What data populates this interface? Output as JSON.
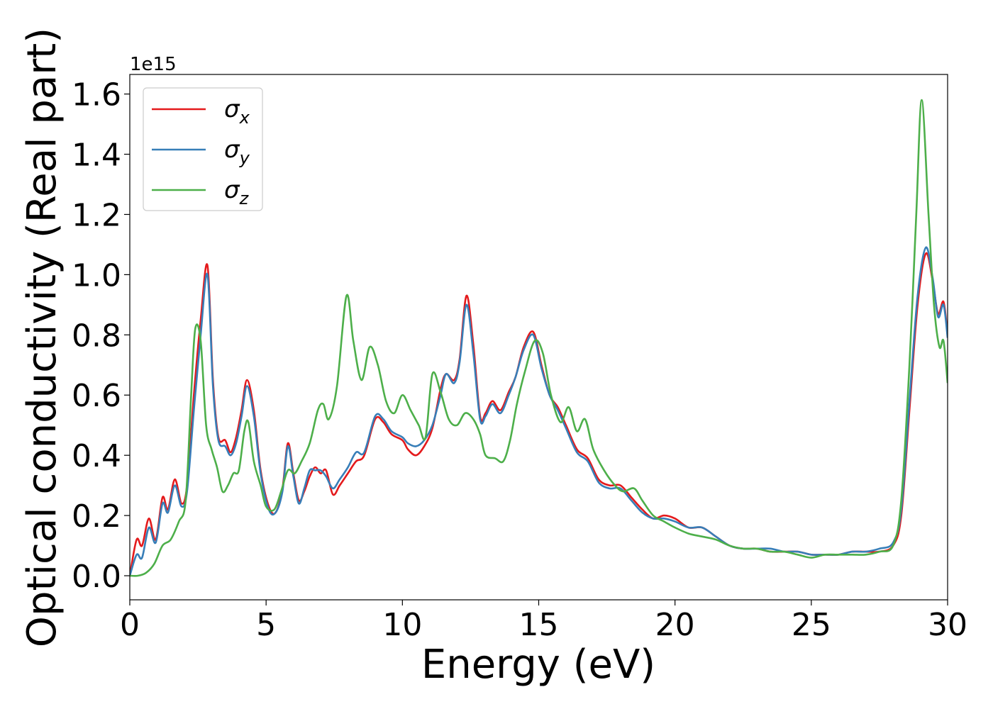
{
  "chart_data": {
    "type": "line",
    "xlabel": "Energy (eV)",
    "ylabel": "Optical conductivity (Real part)",
    "offset_text": "1e15",
    "y_scale": 1000000000000000.0,
    "xlim": [
      0,
      30
    ],
    "ylim": [
      -0.08,
      1.665
    ],
    "x_ticks": [
      0,
      5,
      10,
      15,
      20,
      25,
      30
    ],
    "x_tick_labels": [
      "0",
      "5",
      "10",
      "15",
      "20",
      "25",
      "30"
    ],
    "y_ticks": [
      0.0,
      0.2,
      0.4,
      0.6,
      0.8,
      1.0,
      1.2,
      1.4,
      1.6
    ],
    "y_tick_labels": [
      "0.0",
      "0.2",
      "0.4",
      "0.6",
      "0.8",
      "1.0",
      "1.2",
      "1.4",
      "1.6"
    ],
    "grid": false,
    "legend_position": "top-left",
    "series": [
      {
        "name": "σx",
        "symbol": "σ",
        "subscript": "x",
        "color": "#e41a1c",
        "points": [
          [
            0,
            0.0
          ],
          [
            0.25,
            0.12
          ],
          [
            0.45,
            0.1
          ],
          [
            0.7,
            0.19
          ],
          [
            0.95,
            0.12
          ],
          [
            1.2,
            0.26
          ],
          [
            1.4,
            0.22
          ],
          [
            1.65,
            0.32
          ],
          [
            1.9,
            0.24
          ],
          [
            2.1,
            0.3
          ],
          [
            2.35,
            0.6
          ],
          [
            2.6,
            0.85
          ],
          [
            2.85,
            1.03
          ],
          [
            3.05,
            0.65
          ],
          [
            3.25,
            0.46
          ],
          [
            3.5,
            0.45
          ],
          [
            3.7,
            0.41
          ],
          [
            3.9,
            0.46
          ],
          [
            4.1,
            0.55
          ],
          [
            4.3,
            0.65
          ],
          [
            4.55,
            0.55
          ],
          [
            4.8,
            0.35
          ],
          [
            5.1,
            0.23
          ],
          [
            5.35,
            0.21
          ],
          [
            5.6,
            0.29
          ],
          [
            5.8,
            0.44
          ],
          [
            6.0,
            0.34
          ],
          [
            6.2,
            0.25
          ],
          [
            6.4,
            0.28
          ],
          [
            6.6,
            0.33
          ],
          [
            6.8,
            0.36
          ],
          [
            7.0,
            0.34
          ],
          [
            7.2,
            0.35
          ],
          [
            7.45,
            0.27
          ],
          [
            7.7,
            0.3
          ],
          [
            8.0,
            0.34
          ],
          [
            8.3,
            0.38
          ],
          [
            8.6,
            0.4
          ],
          [
            9.0,
            0.52
          ],
          [
            9.3,
            0.51
          ],
          [
            9.6,
            0.47
          ],
          [
            10.0,
            0.45
          ],
          [
            10.2,
            0.42
          ],
          [
            10.5,
            0.4
          ],
          [
            10.8,
            0.43
          ],
          [
            11.1,
            0.49
          ],
          [
            11.4,
            0.62
          ],
          [
            11.6,
            0.67
          ],
          [
            11.9,
            0.65
          ],
          [
            12.1,
            0.72
          ],
          [
            12.35,
            0.93
          ],
          [
            12.6,
            0.77
          ],
          [
            12.85,
            0.53
          ],
          [
            13.05,
            0.54
          ],
          [
            13.3,
            0.58
          ],
          [
            13.6,
            0.55
          ],
          [
            13.9,
            0.61
          ],
          [
            14.15,
            0.66
          ],
          [
            14.45,
            0.76
          ],
          [
            14.8,
            0.81
          ],
          [
            15.1,
            0.7
          ],
          [
            15.4,
            0.6
          ],
          [
            15.7,
            0.56
          ],
          [
            16.0,
            0.5
          ],
          [
            16.4,
            0.42
          ],
          [
            16.8,
            0.39
          ],
          [
            17.2,
            0.32
          ],
          [
            17.6,
            0.3
          ],
          [
            18.0,
            0.3
          ],
          [
            18.4,
            0.26
          ],
          [
            18.8,
            0.22
          ],
          [
            19.2,
            0.19
          ],
          [
            19.6,
            0.2
          ],
          [
            20.0,
            0.19
          ],
          [
            20.5,
            0.16
          ],
          [
            21.0,
            0.16
          ],
          [
            21.5,
            0.13
          ],
          [
            22.0,
            0.1
          ],
          [
            22.5,
            0.09
          ],
          [
            23.0,
            0.09
          ],
          [
            23.5,
            0.08
          ],
          [
            24.0,
            0.08
          ],
          [
            24.5,
            0.08
          ],
          [
            25.0,
            0.07
          ],
          [
            25.5,
            0.07
          ],
          [
            26.0,
            0.07
          ],
          [
            26.5,
            0.08
          ],
          [
            27.0,
            0.08
          ],
          [
            27.5,
            0.08
          ],
          [
            28.0,
            0.1
          ],
          [
            28.3,
            0.2
          ],
          [
            28.6,
            0.55
          ],
          [
            28.9,
            0.9
          ],
          [
            29.2,
            1.07
          ],
          [
            29.45,
            0.98
          ],
          [
            29.65,
            0.87
          ],
          [
            29.85,
            0.91
          ],
          [
            30.0,
            0.8
          ]
        ]
      },
      {
        "name": "σy",
        "symbol": "σ",
        "subscript": "y",
        "color": "#377eb8",
        "points": [
          [
            0,
            0.0
          ],
          [
            0.25,
            0.07
          ],
          [
            0.45,
            0.06
          ],
          [
            0.7,
            0.16
          ],
          [
            0.95,
            0.11
          ],
          [
            1.2,
            0.24
          ],
          [
            1.4,
            0.21
          ],
          [
            1.65,
            0.3
          ],
          [
            1.9,
            0.23
          ],
          [
            2.1,
            0.28
          ],
          [
            2.35,
            0.55
          ],
          [
            2.6,
            0.8
          ],
          [
            2.85,
            1.0
          ],
          [
            3.05,
            0.63
          ],
          [
            3.25,
            0.45
          ],
          [
            3.5,
            0.43
          ],
          [
            3.7,
            0.4
          ],
          [
            3.9,
            0.44
          ],
          [
            4.1,
            0.53
          ],
          [
            4.3,
            0.63
          ],
          [
            4.55,
            0.53
          ],
          [
            4.8,
            0.34
          ],
          [
            5.1,
            0.22
          ],
          [
            5.35,
            0.21
          ],
          [
            5.6,
            0.28
          ],
          [
            5.8,
            0.43
          ],
          [
            6.0,
            0.33
          ],
          [
            6.2,
            0.24
          ],
          [
            6.4,
            0.29
          ],
          [
            6.6,
            0.35
          ],
          [
            6.8,
            0.35
          ],
          [
            7.0,
            0.35
          ],
          [
            7.2,
            0.33
          ],
          [
            7.45,
            0.29
          ],
          [
            7.7,
            0.32
          ],
          [
            8.0,
            0.36
          ],
          [
            8.3,
            0.41
          ],
          [
            8.6,
            0.41
          ],
          [
            9.0,
            0.53
          ],
          [
            9.3,
            0.52
          ],
          [
            9.6,
            0.48
          ],
          [
            10.0,
            0.46
          ],
          [
            10.2,
            0.44
          ],
          [
            10.5,
            0.43
          ],
          [
            10.8,
            0.45
          ],
          [
            11.1,
            0.5
          ],
          [
            11.4,
            0.6
          ],
          [
            11.6,
            0.67
          ],
          [
            11.9,
            0.64
          ],
          [
            12.1,
            0.71
          ],
          [
            12.35,
            0.9
          ],
          [
            12.6,
            0.74
          ],
          [
            12.85,
            0.52
          ],
          [
            13.05,
            0.53
          ],
          [
            13.3,
            0.57
          ],
          [
            13.6,
            0.54
          ],
          [
            13.9,
            0.6
          ],
          [
            14.15,
            0.66
          ],
          [
            14.45,
            0.75
          ],
          [
            14.8,
            0.8
          ],
          [
            15.1,
            0.69
          ],
          [
            15.4,
            0.6
          ],
          [
            15.7,
            0.55
          ],
          [
            16.0,
            0.49
          ],
          [
            16.4,
            0.41
          ],
          [
            16.8,
            0.38
          ],
          [
            17.2,
            0.31
          ],
          [
            17.6,
            0.29
          ],
          [
            18.0,
            0.29
          ],
          [
            18.4,
            0.25
          ],
          [
            18.8,
            0.21
          ],
          [
            19.2,
            0.19
          ],
          [
            19.6,
            0.19
          ],
          [
            20.0,
            0.18
          ],
          [
            20.5,
            0.16
          ],
          [
            21.0,
            0.16
          ],
          [
            21.5,
            0.13
          ],
          [
            22.0,
            0.1
          ],
          [
            22.5,
            0.09
          ],
          [
            23.0,
            0.09
          ],
          [
            23.5,
            0.09
          ],
          [
            24.0,
            0.08
          ],
          [
            24.5,
            0.08
          ],
          [
            25.0,
            0.07
          ],
          [
            25.5,
            0.07
          ],
          [
            26.0,
            0.07
          ],
          [
            26.5,
            0.08
          ],
          [
            27.0,
            0.08
          ],
          [
            27.5,
            0.09
          ],
          [
            28.0,
            0.11
          ],
          [
            28.3,
            0.22
          ],
          [
            28.6,
            0.58
          ],
          [
            28.9,
            0.93
          ],
          [
            29.2,
            1.09
          ],
          [
            29.45,
            0.99
          ],
          [
            29.65,
            0.86
          ],
          [
            29.85,
            0.9
          ],
          [
            30.0,
            0.79
          ]
        ]
      },
      {
        "name": "σz",
        "symbol": "σ",
        "subscript": "z",
        "color": "#4daf4a",
        "points": [
          [
            0,
            0.0
          ],
          [
            0.3,
            0.0
          ],
          [
            0.6,
            0.01
          ],
          [
            0.9,
            0.04
          ],
          [
            1.2,
            0.1
          ],
          [
            1.5,
            0.12
          ],
          [
            1.8,
            0.18
          ],
          [
            2.05,
            0.25
          ],
          [
            2.25,
            0.6
          ],
          [
            2.4,
            0.82
          ],
          [
            2.6,
            0.78
          ],
          [
            2.8,
            0.5
          ],
          [
            3.0,
            0.42
          ],
          [
            3.2,
            0.36
          ],
          [
            3.4,
            0.28
          ],
          [
            3.6,
            0.3
          ],
          [
            3.8,
            0.34
          ],
          [
            4.0,
            0.35
          ],
          [
            4.2,
            0.48
          ],
          [
            4.35,
            0.51
          ],
          [
            4.55,
            0.38
          ],
          [
            4.8,
            0.3
          ],
          [
            5.0,
            0.23
          ],
          [
            5.3,
            0.22
          ],
          [
            5.55,
            0.28
          ],
          [
            5.8,
            0.35
          ],
          [
            6.05,
            0.34
          ],
          [
            6.3,
            0.38
          ],
          [
            6.6,
            0.44
          ],
          [
            6.9,
            0.55
          ],
          [
            7.1,
            0.57
          ],
          [
            7.3,
            0.52
          ],
          [
            7.6,
            0.63
          ],
          [
            7.95,
            0.93
          ],
          [
            8.2,
            0.78
          ],
          [
            8.5,
            0.65
          ],
          [
            8.8,
            0.76
          ],
          [
            9.1,
            0.7
          ],
          [
            9.4,
            0.58
          ],
          [
            9.7,
            0.54
          ],
          [
            10.0,
            0.6
          ],
          [
            10.3,
            0.55
          ],
          [
            10.6,
            0.5
          ],
          [
            10.85,
            0.46
          ],
          [
            11.1,
            0.67
          ],
          [
            11.4,
            0.61
          ],
          [
            11.7,
            0.52
          ],
          [
            12.0,
            0.5
          ],
          [
            12.3,
            0.54
          ],
          [
            12.6,
            0.52
          ],
          [
            12.85,
            0.47
          ],
          [
            13.05,
            0.4
          ],
          [
            13.4,
            0.39
          ],
          [
            13.7,
            0.38
          ],
          [
            13.95,
            0.45
          ],
          [
            14.2,
            0.57
          ],
          [
            14.5,
            0.68
          ],
          [
            14.85,
            0.78
          ],
          [
            15.15,
            0.74
          ],
          [
            15.45,
            0.6
          ],
          [
            15.8,
            0.51
          ],
          [
            16.1,
            0.56
          ],
          [
            16.4,
            0.48
          ],
          [
            16.7,
            0.52
          ],
          [
            17.0,
            0.42
          ],
          [
            17.4,
            0.35
          ],
          [
            17.8,
            0.3
          ],
          [
            18.1,
            0.28
          ],
          [
            18.5,
            0.29
          ],
          [
            18.8,
            0.25
          ],
          [
            19.2,
            0.2
          ],
          [
            19.6,
            0.18
          ],
          [
            20.0,
            0.16
          ],
          [
            20.5,
            0.14
          ],
          [
            21.0,
            0.13
          ],
          [
            21.5,
            0.12
          ],
          [
            22.0,
            0.1
          ],
          [
            22.5,
            0.09
          ],
          [
            23.0,
            0.09
          ],
          [
            23.5,
            0.08
          ],
          [
            24.0,
            0.08
          ],
          [
            24.5,
            0.07
          ],
          [
            25.0,
            0.06
          ],
          [
            25.5,
            0.07
          ],
          [
            26.0,
            0.07
          ],
          [
            26.5,
            0.07
          ],
          [
            27.0,
            0.07
          ],
          [
            27.5,
            0.08
          ],
          [
            28.0,
            0.1
          ],
          [
            28.3,
            0.25
          ],
          [
            28.6,
            0.7
          ],
          [
            28.85,
            1.2
          ],
          [
            29.05,
            1.58
          ],
          [
            29.3,
            1.2
          ],
          [
            29.5,
            0.9
          ],
          [
            29.7,
            0.76
          ],
          [
            29.85,
            0.78
          ],
          [
            30.0,
            0.64
          ]
        ]
      }
    ]
  }
}
